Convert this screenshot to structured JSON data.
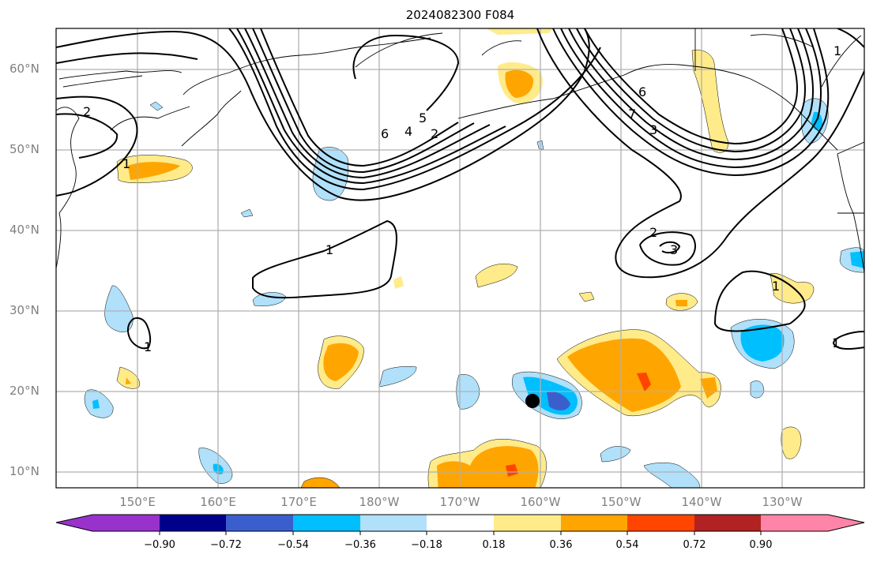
{
  "title": "2024082300 F084",
  "map": {
    "lat_labels": [
      "60°N",
      "50°N",
      "40°N",
      "30°N",
      "20°N",
      "10°N"
    ],
    "lon_labels": [
      "150°E",
      "160°E",
      "170°E",
      "180°W",
      "170°W",
      "160°W",
      "150°W",
      "140°W",
      "130°W"
    ],
    "contour_labels": [
      "1",
      "2",
      "3",
      "4",
      "5",
      "6",
      "7"
    ],
    "marker": "black-dot"
  },
  "colorbar": {
    "ticks": [
      "−0.90",
      "−0.72",
      "−0.54",
      "−0.36",
      "−0.18",
      "0.18",
      "0.36",
      "0.54",
      "0.72",
      "0.90"
    ],
    "colors": [
      "#9932cc",
      "#00008b",
      "#3a5fcd",
      "#00bfff",
      "#b0e0fa",
      "#ffffff",
      "#ffeb8a",
      "#ffa500",
      "#ff4500",
      "#b22222",
      "#ff85a8"
    ]
  }
}
